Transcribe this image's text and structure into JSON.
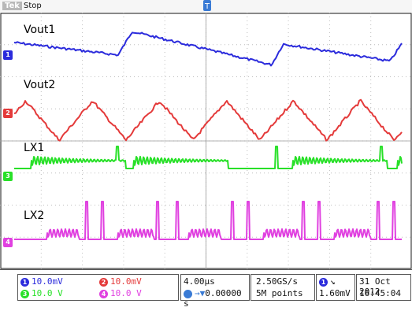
{
  "header": {
    "brand": "Tek",
    "acq_state": "Stop",
    "trigger_position_label": "T"
  },
  "channels": [
    {
      "id": "1",
      "label": "Vout1",
      "color": "#2b2bdc"
    },
    {
      "id": "2",
      "label": "Vout2",
      "color": "#e43a3a"
    },
    {
      "id": "3",
      "label": "LX1",
      "color": "#28e028"
    },
    {
      "id": "4",
      "label": "LX2",
      "color": "#e040e0"
    }
  ],
  "readouts": {
    "ch1_scale": "10.0mV",
    "ch2_scale": "10.0mV",
    "ch3_scale": "10.0 V",
    "ch4_scale": "10.0 V",
    "timebase": "4.00µs",
    "delay": "0.00000 s",
    "sample_rate": "2.50GS/s",
    "record_length": "5M points",
    "trigger_level": "1.60mV",
    "date": "31 Oct  2012",
    "time": "16:45:04"
  },
  "colors": {
    "grid": "#bdbdbd",
    "background": "#ffffff",
    "frame": "#111111"
  }
}
